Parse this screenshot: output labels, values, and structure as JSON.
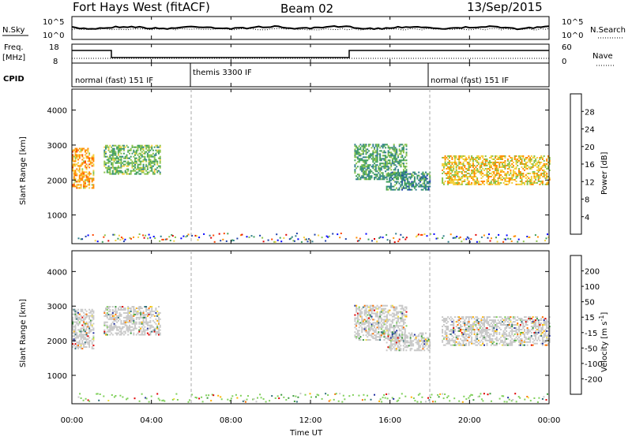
{
  "header": {
    "station": "Fort Hays West (fitACF)",
    "beam": "Beam 02",
    "date": "13/Sep/2015"
  },
  "noise_panel": {
    "left_label": "N.Sky",
    "left_ticks": [
      "10^5",
      "10^0"
    ],
    "right_label": "N.Search",
    "right_ticks": [
      "10^5",
      "10^0"
    ]
  },
  "freq_panel": {
    "left_label_1": "Freq.",
    "left_label_2": "[MHz]",
    "left_ticks": [
      "18",
      "8"
    ],
    "right_label": "Nave",
    "right_ticks": [
      "60",
      "0"
    ]
  },
  "cpid_panel": {
    "label": "CPID",
    "segments": [
      {
        "start_h": 0,
        "end_h": 6,
        "text": "normal (fast) 151 IF"
      },
      {
        "start_h": 6,
        "end_h": 18,
        "text": "themis 3300 IF"
      },
      {
        "start_h": 18,
        "end_h": 24,
        "text": "normal (fast) 151 IF"
      }
    ]
  },
  "chart_data": [
    {
      "type": "heatmap",
      "title": "",
      "xlabel": "Time UT",
      "ylabel": "Slant Range [km]",
      "x_ticks": [
        "00:00",
        "04:00",
        "08:00",
        "12:00",
        "16:00",
        "20:00",
        "00:00"
      ],
      "xlim_hours": [
        0,
        24
      ],
      "y_ticks": [
        1000,
        2000,
        3000,
        4000
      ],
      "ylim_km": [
        180,
        4600
      ],
      "colorbar": {
        "label": "Power [dB]",
        "ticks": [
          28,
          24,
          20,
          16,
          12,
          8,
          4
        ],
        "range": [
          0,
          32
        ],
        "colors": [
          "#0000ff",
          "#1c3fa8",
          "#2e7d8c",
          "#3f9f5a",
          "#8bc34a",
          "#f4d03f",
          "#ff8c00",
          "#ff4500",
          "#e00000"
        ]
      },
      "echo_regions": [
        {
          "t0": 0.0,
          "t1": 1.1,
          "r0": 1750,
          "r1": 2900,
          "v": 22
        },
        {
          "t0": 1.6,
          "t1": 4.4,
          "r0": 2150,
          "r1": 3000,
          "v": 14
        },
        {
          "t0": 14.2,
          "t1": 16.8,
          "r0": 2000,
          "r1": 3000,
          "v": 12
        },
        {
          "t0": 15.8,
          "t1": 18.0,
          "r0": 1700,
          "r1": 2200,
          "v": 10
        },
        {
          "t0": 18.6,
          "t1": 24.0,
          "r0": 1850,
          "r1": 2700,
          "v": 20
        }
      ]
    },
    {
      "type": "heatmap",
      "title": "",
      "xlabel": "Time UT",
      "ylabel": "Slant Range [km]",
      "x_ticks": [
        "00:00",
        "04:00",
        "08:00",
        "12:00",
        "16:00",
        "20:00",
        "00:00"
      ],
      "xlim_hours": [
        0,
        24
      ],
      "y_ticks": [
        1000,
        2000,
        3000,
        4000
      ],
      "ylim_km": [
        180,
        4600
      ],
      "colorbar": {
        "label": "Velocity [m s",
        "label_sup": "-1",
        "label_end": "]",
        "ticks": [
          200,
          100,
          50,
          15,
          -15,
          -50,
          -100,
          -200
        ],
        "colors": [
          "#1e2c9e",
          "#2e6f7a",
          "#3d9a3d",
          "#7fd05a",
          "#c8c8c8",
          "#f0e040",
          "#ffb000",
          "#ff7000",
          "#e00000"
        ]
      }
    }
  ]
}
